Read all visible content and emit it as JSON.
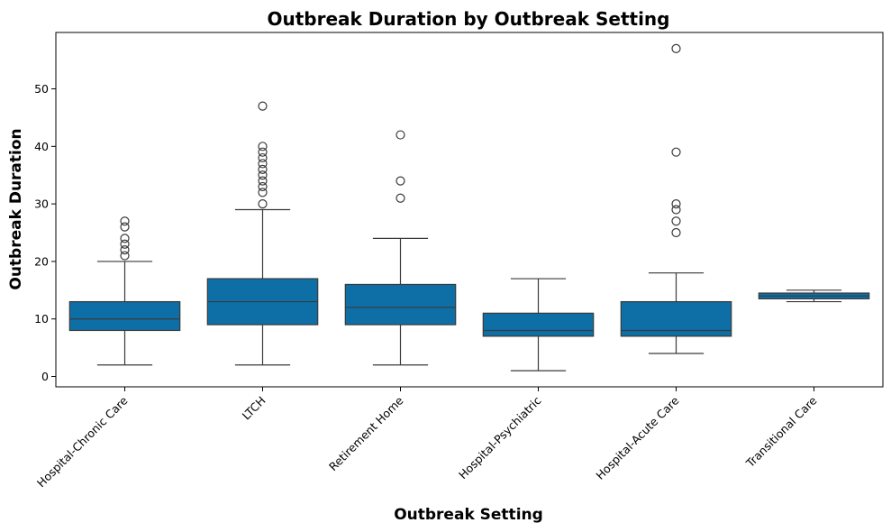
{
  "chart_data": {
    "type": "box",
    "title": "Outbreak Duration by Outbreak Setting",
    "xlabel": "Outbreak Setting",
    "ylabel": "Outbreak Duration",
    "ylim": [
      -1.8,
      59.8
    ],
    "yticks": [
      0,
      10,
      20,
      30,
      40,
      50
    ],
    "grid": false,
    "legend": "none",
    "box_color": "#0e6fa7",
    "line_color": "#3a3a3a",
    "categories": [
      "Hospital-Chronic Care",
      "LTCH",
      "Retirement Home",
      "Hospital-Psychiatric",
      "Hospital-Acute Care",
      "Transitional Care"
    ],
    "boxes": [
      {
        "category": "Hospital-Chronic Care",
        "whisker_low": 2,
        "q1": 8,
        "median": 10,
        "q3": 13,
        "whisker_high": 20,
        "outliers": [
          21,
          22,
          23,
          24,
          26,
          27
        ]
      },
      {
        "category": "LTCH",
        "whisker_low": 2,
        "q1": 9,
        "median": 13,
        "q3": 17,
        "whisker_high": 29,
        "outliers": [
          30,
          32,
          33,
          34,
          35,
          36,
          37,
          38,
          39,
          40,
          47
        ]
      },
      {
        "category": "Retirement Home",
        "whisker_low": 2,
        "q1": 9,
        "median": 12,
        "q3": 16,
        "whisker_high": 24,
        "outliers": [
          31,
          34,
          42
        ]
      },
      {
        "category": "Hospital-Psychiatric",
        "whisker_low": 1,
        "q1": 7,
        "median": 8,
        "q3": 11,
        "whisker_high": 17,
        "outliers": []
      },
      {
        "category": "Hospital-Acute Care",
        "whisker_low": 4,
        "q1": 7,
        "median": 8,
        "q3": 13,
        "whisker_high": 18,
        "outliers": [
          25,
          27,
          29,
          30,
          39,
          57
        ]
      },
      {
        "category": "Transitional Care",
        "whisker_low": 13,
        "q1": 13.5,
        "median": 14,
        "q3": 14.5,
        "whisker_high": 15,
        "outliers": []
      }
    ]
  }
}
